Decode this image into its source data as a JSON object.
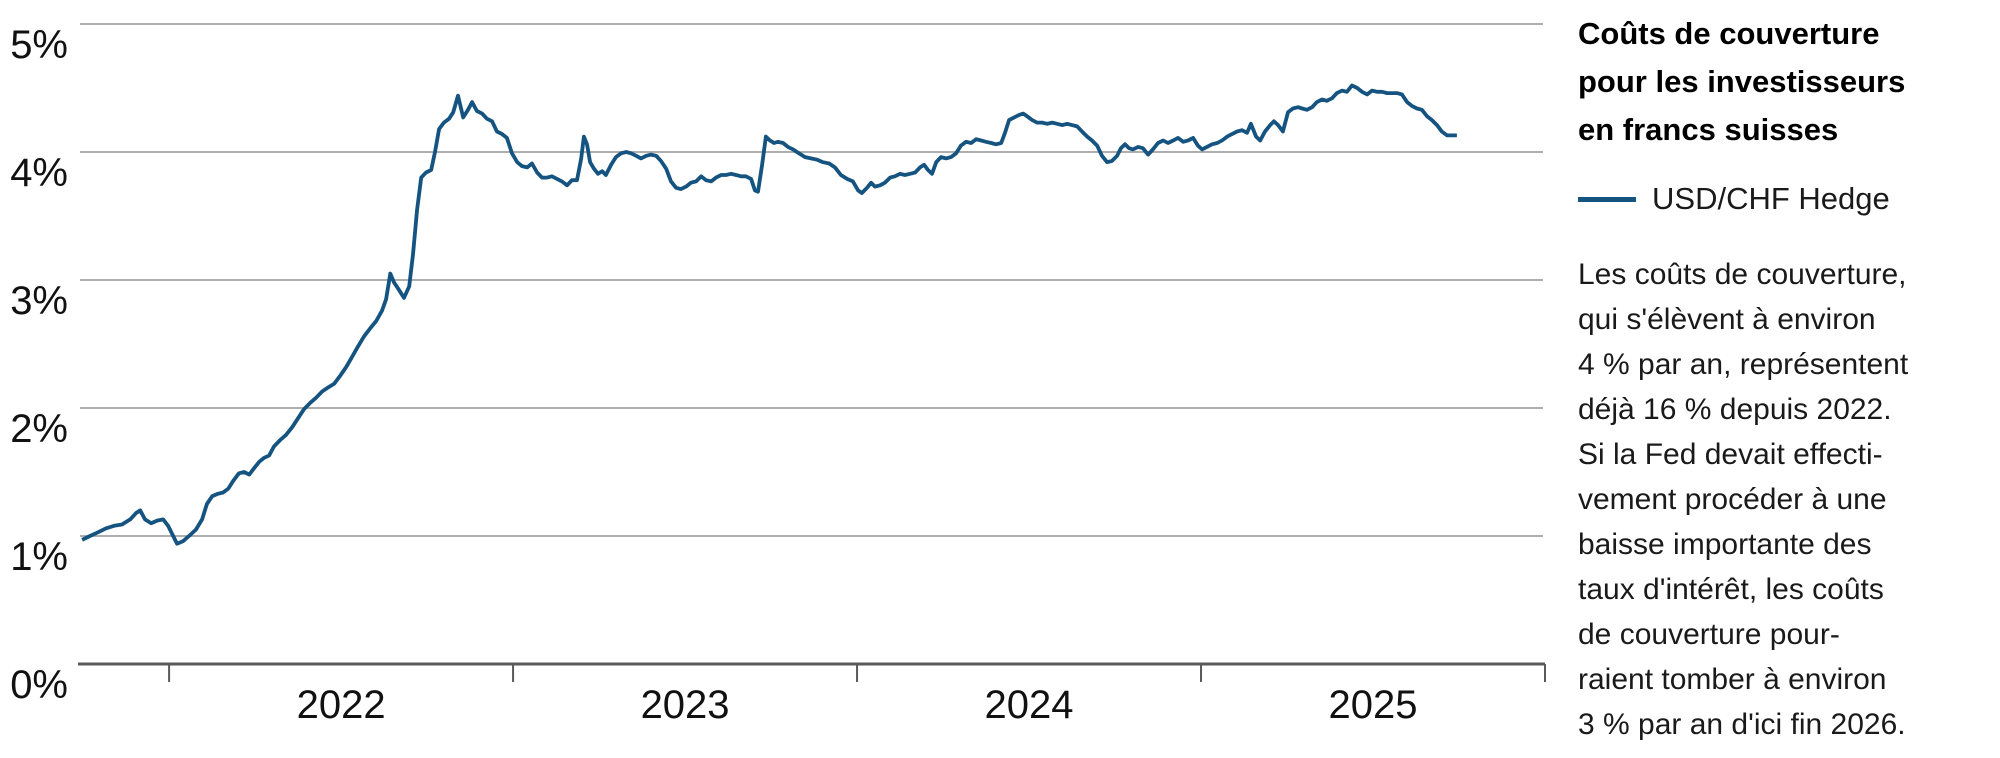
{
  "right_panel": {
    "title_lines": [
      "Coûts de couverture",
      "pour les investisseurs",
      "en francs suisses"
    ],
    "legend": {
      "label": "USD/CHF Hedge",
      "color": "#155380"
    },
    "paragraph_lines": [
      "Les coûts de couverture,",
      "qui s'élèvent à environ",
      "4 % par an, représentent",
      "déjà 16 % depuis 2022.",
      "Si la Fed devait effecti-",
      "vement procéder à une",
      "baisse importante des",
      "taux d'intérêt, les coûts",
      "de couverture pour-",
      "raient tomber à environ",
      "3 % par an d'ici fin 2026."
    ]
  },
  "chart_data": {
    "type": "line",
    "title": "Coûts de couverture pour les investisseurs en francs suisses",
    "xlabel": "",
    "ylabel": "",
    "x_range": [
      2021.741,
      2026.0
    ],
    "y_range": [
      0,
      5
    ],
    "grid": true,
    "y_tick_values": [
      0,
      1,
      2,
      3,
      4,
      5
    ],
    "y_tick_labels": [
      "0%",
      "1%",
      "2%",
      "3%",
      "4%",
      "5%"
    ],
    "x_tick_years": [
      2022,
      2023,
      2024,
      2025,
      2026
    ],
    "x_tick_labels": [
      "2022",
      "2023",
      "2024",
      "2025"
    ],
    "colors": {
      "gridline": "#aeaeae",
      "axis": "#595959",
      "label": "#111111"
    },
    "series": [
      {
        "name": "USD/CHF Hedge",
        "color": "#155380",
        "points": [
          [
            2021.747,
            0.97
          ],
          [
            2021.77,
            1.0
          ],
          [
            2021.794,
            1.03
          ],
          [
            2021.817,
            1.06
          ],
          [
            2021.84,
            1.08
          ],
          [
            2021.863,
            1.09
          ],
          [
            2021.887,
            1.13
          ],
          [
            2021.904,
            1.18
          ],
          [
            2021.916,
            1.2
          ],
          [
            2021.93,
            1.13
          ],
          [
            2021.948,
            1.1
          ],
          [
            2021.965,
            1.12
          ],
          [
            2021.983,
            1.13
          ],
          [
            2021.997,
            1.08
          ],
          [
            2022.012,
            1.0
          ],
          [
            2022.023,
            0.94
          ],
          [
            2022.041,
            0.96
          ],
          [
            2022.058,
            1.0
          ],
          [
            2022.078,
            1.05
          ],
          [
            2022.096,
            1.13
          ],
          [
            2022.11,
            1.25
          ],
          [
            2022.125,
            1.31
          ],
          [
            2022.142,
            1.33
          ],
          [
            2022.157,
            1.34
          ],
          [
            2022.172,
            1.37
          ],
          [
            2022.186,
            1.43
          ],
          [
            2022.203,
            1.49
          ],
          [
            2022.218,
            1.5
          ],
          [
            2022.233,
            1.48
          ],
          [
            2022.247,
            1.53
          ],
          [
            2022.262,
            1.58
          ],
          [
            2022.276,
            1.61
          ],
          [
            2022.291,
            1.63
          ],
          [
            2022.305,
            1.7
          ],
          [
            2022.323,
            1.75
          ],
          [
            2022.34,
            1.79
          ],
          [
            2022.358,
            1.85
          ],
          [
            2022.375,
            1.92
          ],
          [
            2022.392,
            1.99
          ],
          [
            2022.41,
            2.04
          ],
          [
            2022.427,
            2.08
          ],
          [
            2022.445,
            2.13
          ],
          [
            2022.462,
            2.16
          ],
          [
            2022.48,
            2.19
          ],
          [
            2022.497,
            2.25
          ],
          [
            2022.515,
            2.32
          ],
          [
            2022.532,
            2.4
          ],
          [
            2022.549,
            2.48
          ],
          [
            2022.567,
            2.56
          ],
          [
            2022.584,
            2.62
          ],
          [
            2022.602,
            2.68
          ],
          [
            2022.619,
            2.76
          ],
          [
            2022.631,
            2.85
          ],
          [
            2022.643,
            3.05
          ],
          [
            2022.654,
            2.98
          ],
          [
            2022.669,
            2.92
          ],
          [
            2022.683,
            2.86
          ],
          [
            2022.698,
            2.95
          ],
          [
            2022.709,
            3.2
          ],
          [
            2022.721,
            3.55
          ],
          [
            2022.733,
            3.8
          ],
          [
            2022.747,
            3.84
          ],
          [
            2022.762,
            3.86
          ],
          [
            2022.773,
            4.0
          ],
          [
            2022.785,
            4.18
          ],
          [
            2022.799,
            4.23
          ],
          [
            2022.814,
            4.26
          ],
          [
            2022.826,
            4.31
          ],
          [
            2022.84,
            4.44
          ],
          [
            2022.855,
            4.27
          ],
          [
            2022.869,
            4.33
          ],
          [
            2022.881,
            4.39
          ],
          [
            2022.895,
            4.32
          ],
          [
            2022.91,
            4.3
          ],
          [
            2022.924,
            4.26
          ],
          [
            2022.939,
            4.24
          ],
          [
            2022.953,
            4.16
          ],
          [
            2022.968,
            4.14
          ],
          [
            2022.982,
            4.11
          ],
          [
            2022.997,
            3.99
          ],
          [
            2023.012,
            3.92
          ],
          [
            2023.026,
            3.89
          ],
          [
            2023.041,
            3.88
          ],
          [
            2023.055,
            3.91
          ],
          [
            2023.07,
            3.84
          ],
          [
            2023.084,
            3.8
          ],
          [
            2023.099,
            3.8
          ],
          [
            2023.113,
            3.81
          ],
          [
            2023.128,
            3.79
          ],
          [
            2023.142,
            3.77
          ],
          [
            2023.157,
            3.74
          ],
          [
            2023.171,
            3.78
          ],
          [
            2023.186,
            3.78
          ],
          [
            2023.198,
            3.95
          ],
          [
            2023.206,
            4.12
          ],
          [
            2023.215,
            4.06
          ],
          [
            2023.224,
            3.92
          ],
          [
            2023.235,
            3.87
          ],
          [
            2023.247,
            3.83
          ],
          [
            2023.259,
            3.85
          ],
          [
            2023.27,
            3.82
          ],
          [
            2023.285,
            3.9
          ],
          [
            2023.299,
            3.96
          ],
          [
            2023.314,
            3.99
          ],
          [
            2023.329,
            4.0
          ],
          [
            2023.343,
            3.99
          ],
          [
            2023.358,
            3.97
          ],
          [
            2023.372,
            3.95
          ],
          [
            2023.387,
            3.97
          ],
          [
            2023.401,
            3.98
          ],
          [
            2023.416,
            3.97
          ],
          [
            2023.43,
            3.93
          ],
          [
            2023.445,
            3.87
          ],
          [
            2023.459,
            3.77
          ],
          [
            2023.474,
            3.72
          ],
          [
            2023.488,
            3.71
          ],
          [
            2023.503,
            3.73
          ],
          [
            2023.517,
            3.76
          ],
          [
            2023.532,
            3.77
          ],
          [
            2023.547,
            3.81
          ],
          [
            2023.561,
            3.78
          ],
          [
            2023.576,
            3.77
          ],
          [
            2023.59,
            3.8
          ],
          [
            2023.605,
            3.82
          ],
          [
            2023.619,
            3.82
          ],
          [
            2023.634,
            3.83
          ],
          [
            2023.648,
            3.82
          ],
          [
            2023.663,
            3.81
          ],
          [
            2023.677,
            3.81
          ],
          [
            2023.692,
            3.79
          ],
          [
            2023.703,
            3.7
          ],
          [
            2023.712,
            3.69
          ],
          [
            2023.724,
            3.9
          ],
          [
            2023.735,
            4.12
          ],
          [
            2023.747,
            4.09
          ],
          [
            2023.759,
            4.07
          ],
          [
            2023.77,
            4.08
          ],
          [
            2023.785,
            4.07
          ],
          [
            2023.799,
            4.04
          ],
          [
            2023.814,
            4.02
          ],
          [
            2023.831,
            3.99
          ],
          [
            2023.849,
            3.96
          ],
          [
            2023.866,
            3.95
          ],
          [
            2023.884,
            3.94
          ],
          [
            2023.901,
            3.92
          ],
          [
            2023.919,
            3.91
          ],
          [
            2023.936,
            3.88
          ],
          [
            2023.953,
            3.82
          ],
          [
            2023.971,
            3.79
          ],
          [
            2023.988,
            3.77
          ],
          [
            2024.003,
            3.7
          ],
          [
            2024.014,
            3.68
          ],
          [
            2024.029,
            3.72
          ],
          [
            2024.041,
            3.76
          ],
          [
            2024.052,
            3.73
          ],
          [
            2024.067,
            3.74
          ],
          [
            2024.081,
            3.76
          ],
          [
            2024.096,
            3.8
          ],
          [
            2024.11,
            3.81
          ],
          [
            2024.125,
            3.83
          ],
          [
            2024.139,
            3.82
          ],
          [
            2024.154,
            3.83
          ],
          [
            2024.169,
            3.84
          ],
          [
            2024.183,
            3.88
          ],
          [
            2024.195,
            3.9
          ],
          [
            2024.206,
            3.86
          ],
          [
            2024.218,
            3.83
          ],
          [
            2024.23,
            3.92
          ],
          [
            2024.244,
            3.96
          ],
          [
            2024.259,
            3.95
          ],
          [
            2024.273,
            3.96
          ],
          [
            2024.288,
            3.99
          ],
          [
            2024.302,
            4.05
          ],
          [
            2024.317,
            4.08
          ],
          [
            2024.332,
            4.07
          ],
          [
            2024.346,
            4.1
          ],
          [
            2024.361,
            4.09
          ],
          [
            2024.375,
            4.08
          ],
          [
            2024.39,
            4.07
          ],
          [
            2024.404,
            4.06
          ],
          [
            2024.419,
            4.07
          ],
          [
            2024.43,
            4.15
          ],
          [
            2024.442,
            4.25
          ],
          [
            2024.457,
            4.27
          ],
          [
            2024.471,
            4.29
          ],
          [
            2024.483,
            4.3
          ],
          [
            2024.494,
            4.28
          ],
          [
            2024.509,
            4.25
          ],
          [
            2024.523,
            4.23
          ],
          [
            2024.538,
            4.23
          ],
          [
            2024.553,
            4.22
          ],
          [
            2024.567,
            4.23
          ],
          [
            2024.582,
            4.22
          ],
          [
            2024.596,
            4.21
          ],
          [
            2024.611,
            4.22
          ],
          [
            2024.625,
            4.21
          ],
          [
            2024.64,
            4.2
          ],
          [
            2024.654,
            4.16
          ],
          [
            2024.669,
            4.12
          ],
          [
            2024.683,
            4.09
          ],
          [
            2024.698,
            4.05
          ],
          [
            2024.712,
            3.97
          ],
          [
            2024.727,
            3.92
          ],
          [
            2024.741,
            3.93
          ],
          [
            2024.756,
            3.97
          ],
          [
            2024.767,
            4.03
          ],
          [
            2024.779,
            4.06
          ],
          [
            2024.791,
            4.03
          ],
          [
            2024.802,
            4.02
          ],
          [
            2024.817,
            4.04
          ],
          [
            2024.831,
            4.03
          ],
          [
            2024.846,
            3.98
          ],
          [
            2024.86,
            4.02
          ],
          [
            2024.875,
            4.07
          ],
          [
            2024.89,
            4.09
          ],
          [
            2024.904,
            4.07
          ],
          [
            2024.919,
            4.09
          ],
          [
            2024.933,
            4.11
          ],
          [
            2024.948,
            4.08
          ],
          [
            2024.962,
            4.09
          ],
          [
            2024.977,
            4.11
          ],
          [
            2024.991,
            4.05
          ],
          [
            2025.003,
            4.02
          ],
          [
            2025.017,
            4.04
          ],
          [
            2025.032,
            4.06
          ],
          [
            2025.047,
            4.07
          ],
          [
            2025.061,
            4.09
          ],
          [
            2025.076,
            4.12
          ],
          [
            2025.09,
            4.14
          ],
          [
            2025.105,
            4.16
          ],
          [
            2025.119,
            4.17
          ],
          [
            2025.134,
            4.15
          ],
          [
            2025.145,
            4.22
          ],
          [
            2025.16,
            4.12
          ],
          [
            2025.172,
            4.09
          ],
          [
            2025.186,
            4.16
          ],
          [
            2025.201,
            4.21
          ],
          [
            2025.212,
            4.24
          ],
          [
            2025.224,
            4.21
          ],
          [
            2025.238,
            4.16
          ],
          [
            2025.253,
            4.31
          ],
          [
            2025.267,
            4.34
          ],
          [
            2025.282,
            4.35
          ],
          [
            2025.294,
            4.34
          ],
          [
            2025.308,
            4.33
          ],
          [
            2025.323,
            4.35
          ],
          [
            2025.337,
            4.39
          ],
          [
            2025.352,
            4.41
          ],
          [
            2025.366,
            4.4
          ],
          [
            2025.381,
            4.42
          ],
          [
            2025.395,
            4.46
          ],
          [
            2025.41,
            4.48
          ],
          [
            2025.424,
            4.47
          ],
          [
            2025.439,
            4.52
          ],
          [
            2025.454,
            4.5
          ],
          [
            2025.468,
            4.47
          ],
          [
            2025.483,
            4.45
          ],
          [
            2025.497,
            4.48
          ],
          [
            2025.512,
            4.47
          ],
          [
            2025.526,
            4.47
          ],
          [
            2025.541,
            4.46
          ],
          [
            2025.555,
            4.46
          ],
          [
            2025.57,
            4.46
          ],
          [
            2025.584,
            4.45
          ],
          [
            2025.599,
            4.39
          ],
          [
            2025.613,
            4.36
          ],
          [
            2025.628,
            4.34
          ],
          [
            2025.642,
            4.33
          ],
          [
            2025.657,
            4.28
          ],
          [
            2025.671,
            4.25
          ],
          [
            2025.686,
            4.21
          ],
          [
            2025.7,
            4.16
          ],
          [
            2025.715,
            4.13
          ],
          [
            2025.73,
            4.13
          ],
          [
            2025.744,
            4.13
          ]
        ]
      }
    ],
    "legend_position": "right-panel"
  }
}
